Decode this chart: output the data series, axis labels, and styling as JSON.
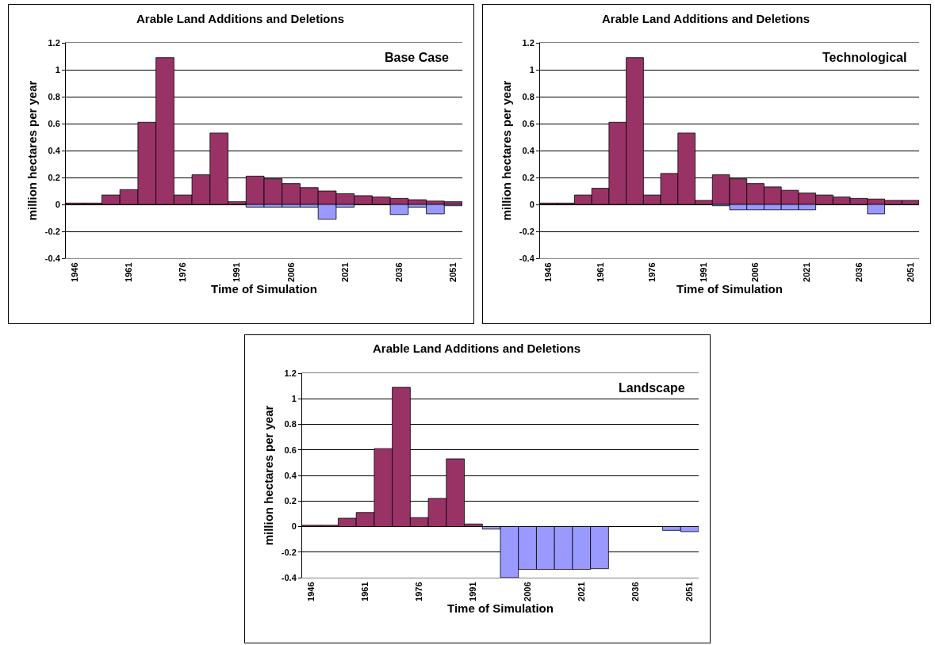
{
  "chart_data": [
    {
      "type": "bar",
      "title": "Arable Land Additions and Deletions",
      "xlabel": "Time of Simulation",
      "ylabel": "million hectares per year",
      "annotations": [
        "Base Case"
      ],
      "stacked": true,
      "grid": "y",
      "categories": [
        "1946",
        null,
        null,
        "1961",
        null,
        null,
        "1976",
        null,
        null,
        "1991",
        null,
        null,
        "2006",
        null,
        null,
        "2021",
        null,
        null,
        "2036",
        null,
        null,
        "2051"
      ],
      "ylim": [
        -0.4,
        1.2
      ],
      "yticks": [
        -0.4,
        -0.2,
        0,
        0.2,
        0.4,
        0.6,
        0.8,
        1,
        1.2
      ],
      "series": [
        {
          "color": "#993366",
          "values": [
            0.01,
            0.01,
            0.07,
            0.11,
            0.61,
            1.09,
            0.07,
            0.22,
            0.53,
            0.02,
            0.21,
            0.19,
            0.155,
            0.125,
            0.1,
            0.08,
            0.065,
            0.055,
            0.045,
            0.035,
            0.025,
            0.02
          ]
        },
        {
          "color": "#9999ff",
          "values": [
            null,
            null,
            null,
            null,
            null,
            null,
            null,
            null,
            null,
            null,
            -0.02,
            -0.02,
            -0.02,
            -0.02,
            -0.11,
            -0.02,
            null,
            null,
            -0.075,
            -0.02,
            -0.07,
            -0.01
          ]
        }
      ]
    },
    {
      "type": "bar",
      "title": "Arable Land Additions and Deletions",
      "xlabel": "Time of Simulation",
      "ylabel": "million hectares per year",
      "annotations": [
        "Technological"
      ],
      "stacked": true,
      "grid": "y",
      "categories": [
        "1946",
        null,
        null,
        "1961",
        null,
        null,
        "1976",
        null,
        null,
        "1991",
        null,
        null,
        "2006",
        null,
        null,
        "2021",
        null,
        null,
        "2036",
        null,
        null,
        "2051"
      ],
      "ylim": [
        -0.4,
        1.2
      ],
      "yticks": [
        -0.4,
        -0.2,
        0,
        0.2,
        0.4,
        0.6,
        0.8,
        1,
        1.2
      ],
      "series": [
        {
          "color": "#993366",
          "values": [
            0.01,
            0.01,
            0.07,
            0.12,
            0.61,
            1.09,
            0.07,
            0.23,
            0.53,
            0.03,
            0.22,
            0.19,
            0.155,
            0.13,
            0.105,
            0.085,
            0.07,
            0.055,
            0.045,
            0.04,
            0.03,
            0.03
          ]
        },
        {
          "color": "#9999ff",
          "values": [
            null,
            null,
            null,
            null,
            null,
            null,
            null,
            null,
            null,
            null,
            -0.01,
            -0.04,
            -0.04,
            -0.04,
            -0.04,
            -0.04,
            null,
            null,
            null,
            -0.07,
            null,
            null
          ]
        }
      ]
    },
    {
      "type": "bar",
      "title": "Arable Land Additions and Deletions",
      "xlabel": "Time of Simulation",
      "ylabel": "million hectares per year",
      "annotations": [
        "Landscape"
      ],
      "stacked": true,
      "grid": "y",
      "categories": [
        "1946",
        null,
        null,
        "1961",
        null,
        null,
        "1976",
        null,
        null,
        "1991",
        null,
        null,
        "2006",
        null,
        null,
        "2021",
        null,
        null,
        "2036",
        null,
        null,
        "2051"
      ],
      "ylim": [
        -0.4,
        1.2
      ],
      "yticks": [
        -0.4,
        -0.2,
        0,
        0.2,
        0.4,
        0.6,
        0.8,
        1,
        1.2
      ],
      "series": [
        {
          "color": "#993366",
          "values": [
            0.01,
            0.01,
            0.065,
            0.11,
            0.61,
            1.09,
            0.07,
            0.22,
            0.53,
            0.02,
            null,
            null,
            null,
            null,
            null,
            null,
            null,
            null,
            null,
            null,
            null,
            null
          ]
        },
        {
          "color": "#9999ff",
          "values": [
            null,
            null,
            null,
            null,
            null,
            null,
            null,
            null,
            null,
            null,
            -0.02,
            -0.4,
            -0.335,
            -0.335,
            -0.335,
            -0.335,
            -0.33,
            null,
            null,
            null,
            -0.03,
            -0.04
          ]
        }
      ]
    }
  ]
}
